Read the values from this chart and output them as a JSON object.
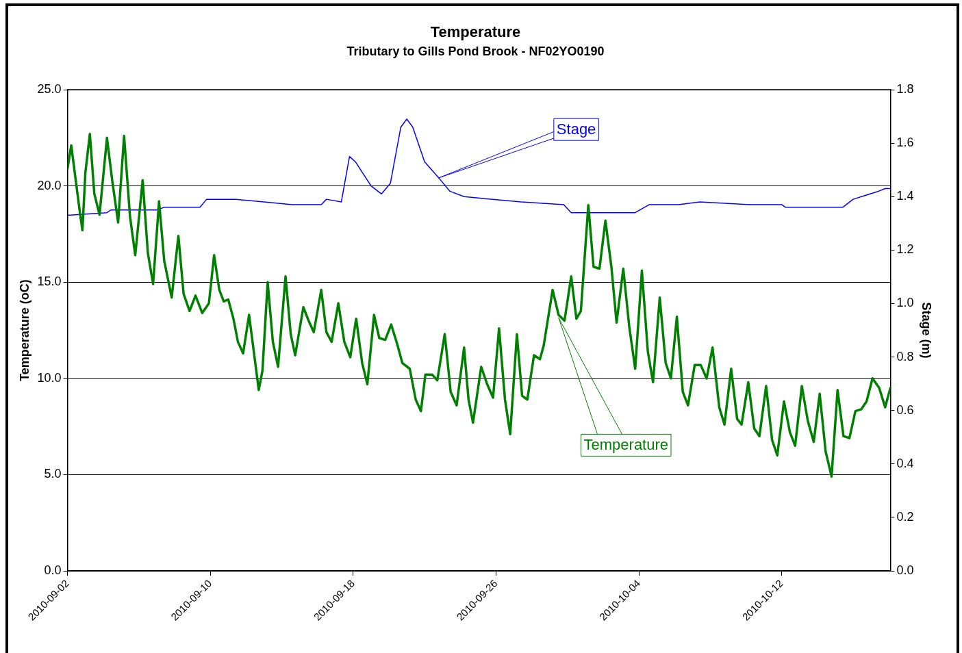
{
  "chart_data": {
    "type": "line",
    "title": "Temperature",
    "subtitle": "Tributary to Gills Pond Brook - NF02YO0190",
    "ylabel": "Temperature (oC)",
    "y2label": "Stage (m)",
    "xlim": [
      "2010-09-02",
      "2010-10-18T02:00"
    ],
    "xticks": [
      "2010-09-02",
      "2010-09-10",
      "2010-09-18",
      "2010-09-26",
      "2010-10-04",
      "2010-10-12"
    ],
    "ylim": [
      0,
      25
    ],
    "yticks": [
      {
        "value": 0,
        "label": "0.0"
      },
      {
        "value": 5,
        "label": "5.0"
      },
      {
        "value": 10,
        "label": "10.0"
      },
      {
        "value": 15,
        "label": "15.0"
      },
      {
        "value": 20,
        "label": "20.0"
      },
      {
        "value": 25,
        "label": "25.0"
      }
    ],
    "y2lim": [
      0,
      1.8
    ],
    "y2ticks": [
      {
        "value": 0,
        "label": "0.0"
      },
      {
        "value": 0.2,
        "label": "0.2"
      },
      {
        "value": 0.4,
        "label": "0.4"
      },
      {
        "value": 0.6,
        "label": "0.6"
      },
      {
        "value": 0.8,
        "label": "0.8"
      },
      {
        "value": 1.0,
        "label": "1.0"
      },
      {
        "value": 1.2,
        "label": "1.2"
      },
      {
        "value": 1.4,
        "label": "1.4"
      },
      {
        "value": 1.6,
        "label": "1.6"
      },
      {
        "value": 1.8,
        "label": "1.8"
      }
    ],
    "grid": "y",
    "legend": false,
    "line_style": "solid",
    "series": [
      {
        "name": "Temperature",
        "color": "#008000",
        "x": [
          "2010-09-02T00:00",
          "2010-09-02T05:00",
          "2010-09-02T12:00",
          "2010-09-02T16:00",
          "2010-09-02T20:00",
          "2010-09-03T00:00",
          "2010-09-03T06:00",
          "2010-09-03T12:00",
          "2010-09-03T19:00",
          "2010-09-04T05:00",
          "2010-09-04T12:00",
          "2010-09-04T20:00",
          "2010-09-05T04:00",
          "2010-09-05T12:00",
          "2010-09-05T19:00",
          "2010-09-06T05:00",
          "2010-09-06T12:00",
          "2010-09-06T19:00",
          "2010-09-07T03:00",
          "2010-09-07T10:00",
          "2010-09-07T20:00",
          "2010-09-08T05:00",
          "2010-09-08T12:00",
          "2010-09-08T20:00",
          "2010-09-09T04:00",
          "2010-09-09T13:00",
          "2010-09-09T22:00",
          "2010-09-10T05:00",
          "2010-09-10T12:00",
          "2010-09-10T18:00",
          "2010-09-11T00:00",
          "2010-09-11T07:00",
          "2010-09-11T13:00",
          "2010-09-11T20:00",
          "2010-09-12T04:00",
          "2010-09-12T11:00",
          "2010-09-12T17:00",
          "2010-09-12T22:00",
          "2010-09-13T05:00",
          "2010-09-13T12:00",
          "2010-09-13T19:00",
          "2010-09-14T05:00",
          "2010-09-14T12:00",
          "2010-09-14T18:00",
          "2010-09-15T05:00",
          "2010-09-15T12:00",
          "2010-09-15T19:00",
          "2010-09-16T05:00",
          "2010-09-16T12:00",
          "2010-09-16T19:00",
          "2010-09-17T04:00",
          "2010-09-17T12:00",
          "2010-09-17T20:00",
          "2010-09-18T04:00",
          "2010-09-18T12:00",
          "2010-09-18T19:00",
          "2010-09-19T04:00",
          "2010-09-19T11:00",
          "2010-09-19T19:00",
          "2010-09-20T03:00",
          "2010-09-20T11:00",
          "2010-09-20T18:00",
          "2010-09-21T04:00",
          "2010-09-21T12:00",
          "2010-09-21T19:00",
          "2010-09-22T01:00",
          "2010-09-22T10:00",
          "2010-09-22T17:00",
          "2010-09-23T03:00",
          "2010-09-23T11:00",
          "2010-09-23T19:00",
          "2010-09-24T05:00",
          "2010-09-24T11:00",
          "2010-09-24T17:00",
          "2010-09-25T04:00",
          "2010-09-25T12:00",
          "2010-09-25T20:00",
          "2010-09-26T04:00",
          "2010-09-26T12:00",
          "2010-09-26T19:00",
          "2010-09-27T04:00",
          "2010-09-27T11:00",
          "2010-09-27T18:00",
          "2010-09-28T03:00",
          "2010-09-28T11:00",
          "2010-09-28T16:00",
          "2010-09-29T04:00",
          "2010-09-29T12:00",
          "2010-09-29T20:00",
          "2010-09-30T05:00",
          "2010-09-30T12:00",
          "2010-09-30T18:00",
          "2010-10-01T04:00",
          "2010-10-01T11:00",
          "2010-10-01T19:00",
          "2010-10-02T03:00",
          "2010-10-02T11:00",
          "2010-10-02T18:00",
          "2010-10-03T03:00",
          "2010-10-03T11:00",
          "2010-10-03T19:00",
          "2010-10-04T04:00",
          "2010-10-04T12:00",
          "2010-10-04T19:00",
          "2010-10-05T04:00",
          "2010-10-05T12:00",
          "2010-10-05T19:00",
          "2010-10-06T03:00",
          "2010-10-06T11:00",
          "2010-10-06T18:00",
          "2010-10-07T03:00",
          "2010-10-07T11:00",
          "2010-10-07T19:00",
          "2010-10-08T03:00",
          "2010-10-08T12:00",
          "2010-10-08T19:00",
          "2010-10-09T04:00",
          "2010-10-09T12:00",
          "2010-10-09T18:00",
          "2010-10-10T03:00",
          "2010-10-10T11:00",
          "2010-10-10T18:00",
          "2010-10-11T03:00",
          "2010-10-11T11:00",
          "2010-10-11T18:00",
          "2010-10-12T03:00",
          "2010-10-12T11:00",
          "2010-10-12T18:00",
          "2010-10-13T03:00",
          "2010-10-13T11:00",
          "2010-10-13T19:00",
          "2010-10-14T03:00",
          "2010-10-14T11:00",
          "2010-10-14T19:00",
          "2010-10-15T03:00",
          "2010-10-15T11:00",
          "2010-10-15T19:00",
          "2010-10-16T03:00",
          "2010-10-16T11:00",
          "2010-10-16T18:00",
          "2010-10-17T02:00",
          "2010-10-17T11:00",
          "2010-10-17T19:00",
          "2010-10-18T02:00"
        ],
        "values": [
          20.9,
          22.1,
          20.0,
          18.8,
          17.7,
          20.7,
          22.7,
          19.6,
          18.5,
          22.5,
          20.3,
          18.1,
          22.6,
          18.4,
          16.4,
          20.3,
          16.5,
          14.9,
          19.2,
          16.1,
          14.2,
          17.4,
          14.4,
          13.5,
          14.3,
          13.4,
          13.9,
          16.4,
          14.6,
          14.0,
          14.1,
          13.1,
          11.9,
          11.3,
          13.3,
          11.2,
          9.4,
          10.4,
          15.0,
          11.9,
          10.6,
          15.3,
          12.3,
          11.2,
          13.7,
          13.0,
          12.4,
          14.6,
          12.4,
          11.9,
          13.9,
          11.9,
          11.1,
          13.1,
          10.8,
          9.7,
          13.3,
          12.1,
          12.0,
          12.8,
          11.8,
          10.8,
          10.5,
          8.9,
          8.3,
          10.2,
          10.2,
          9.9,
          12.3,
          9.3,
          8.6,
          11.6,
          8.9,
          7.7,
          10.6,
          9.7,
          9.0,
          12.6,
          8.9,
          7.1,
          12.3,
          9.1,
          8.9,
          11.2,
          11.0,
          11.7,
          14.6,
          13.3,
          13.0,
          15.3,
          13.1,
          13.5,
          19.0,
          15.8,
          15.7,
          18.2,
          15.8,
          12.9,
          15.7,
          12.7,
          10.5,
          15.6,
          11.4,
          9.8,
          14.2,
          10.8,
          10.0,
          13.2,
          9.3,
          8.6,
          10.7,
          10.7,
          10.0,
          11.6,
          8.5,
          7.6,
          10.5,
          7.9,
          7.6,
          9.8,
          7.4,
          7.0,
          9.6,
          6.8,
          6.0,
          8.8,
          7.2,
          6.5,
          9.6,
          7.8,
          6.7,
          9.2,
          6.2,
          4.9,
          9.4,
          7.0,
          6.9,
          8.3,
          8.4,
          8.8,
          10.0,
          9.5,
          8.5,
          9.5
        ]
      },
      {
        "name": "Stage",
        "color": "#0000ff",
        "axis": "y2",
        "x": [
          "2010-09-02T00:00",
          "2010-09-04T05:00",
          "2010-09-04T10:00",
          "2010-09-07T00:00",
          "2010-09-07T10:00",
          "2010-09-09T10:00",
          "2010-09-09T19:00",
          "2010-09-11T10:00",
          "2010-09-13T00:00",
          "2010-09-14T14:00",
          "2010-09-16T05:00",
          "2010-09-16T12:00",
          "2010-09-17T08:00",
          "2010-09-17T19:00",
          "2010-09-18T03:00",
          "2010-09-19T00:00",
          "2010-09-19T14:00",
          "2010-09-20T02:00",
          "2010-09-20T16:00",
          "2010-09-21T00:00",
          "2010-09-21T08:00",
          "2010-09-22T00:00",
          "2010-09-22T19:00",
          "2010-09-23T10:00",
          "2010-09-24T05:00",
          "2010-09-25T19:00",
          "2010-09-27T10:00",
          "2010-09-29T19:00",
          "2010-09-30T05:00",
          "2010-10-02T05:00",
          "2010-10-03T19:00",
          "2010-10-04T14:00",
          "2010-10-06T05:00",
          "2010-10-07T10:00",
          "2010-10-10T05:00",
          "2010-10-12T00:00",
          "2010-10-12T05:00",
          "2010-10-15T10:00",
          "2010-10-16T00:00",
          "2010-10-17T10:00",
          "2010-10-17T19:00",
          "2010-10-18T02:00"
        ],
        "values": [
          1.33,
          1.34,
          1.35,
          1.35,
          1.36,
          1.36,
          1.39,
          1.39,
          1.38,
          1.37,
          1.37,
          1.39,
          1.38,
          1.55,
          1.53,
          1.44,
          1.41,
          1.45,
          1.66,
          1.69,
          1.66,
          1.53,
          1.47,
          1.42,
          1.4,
          1.39,
          1.38,
          1.37,
          1.34,
          1.34,
          1.34,
          1.37,
          1.37,
          1.38,
          1.37,
          1.37,
          1.36,
          1.36,
          1.39,
          1.42,
          1.43,
          1.43
        ]
      }
    ]
  }
}
